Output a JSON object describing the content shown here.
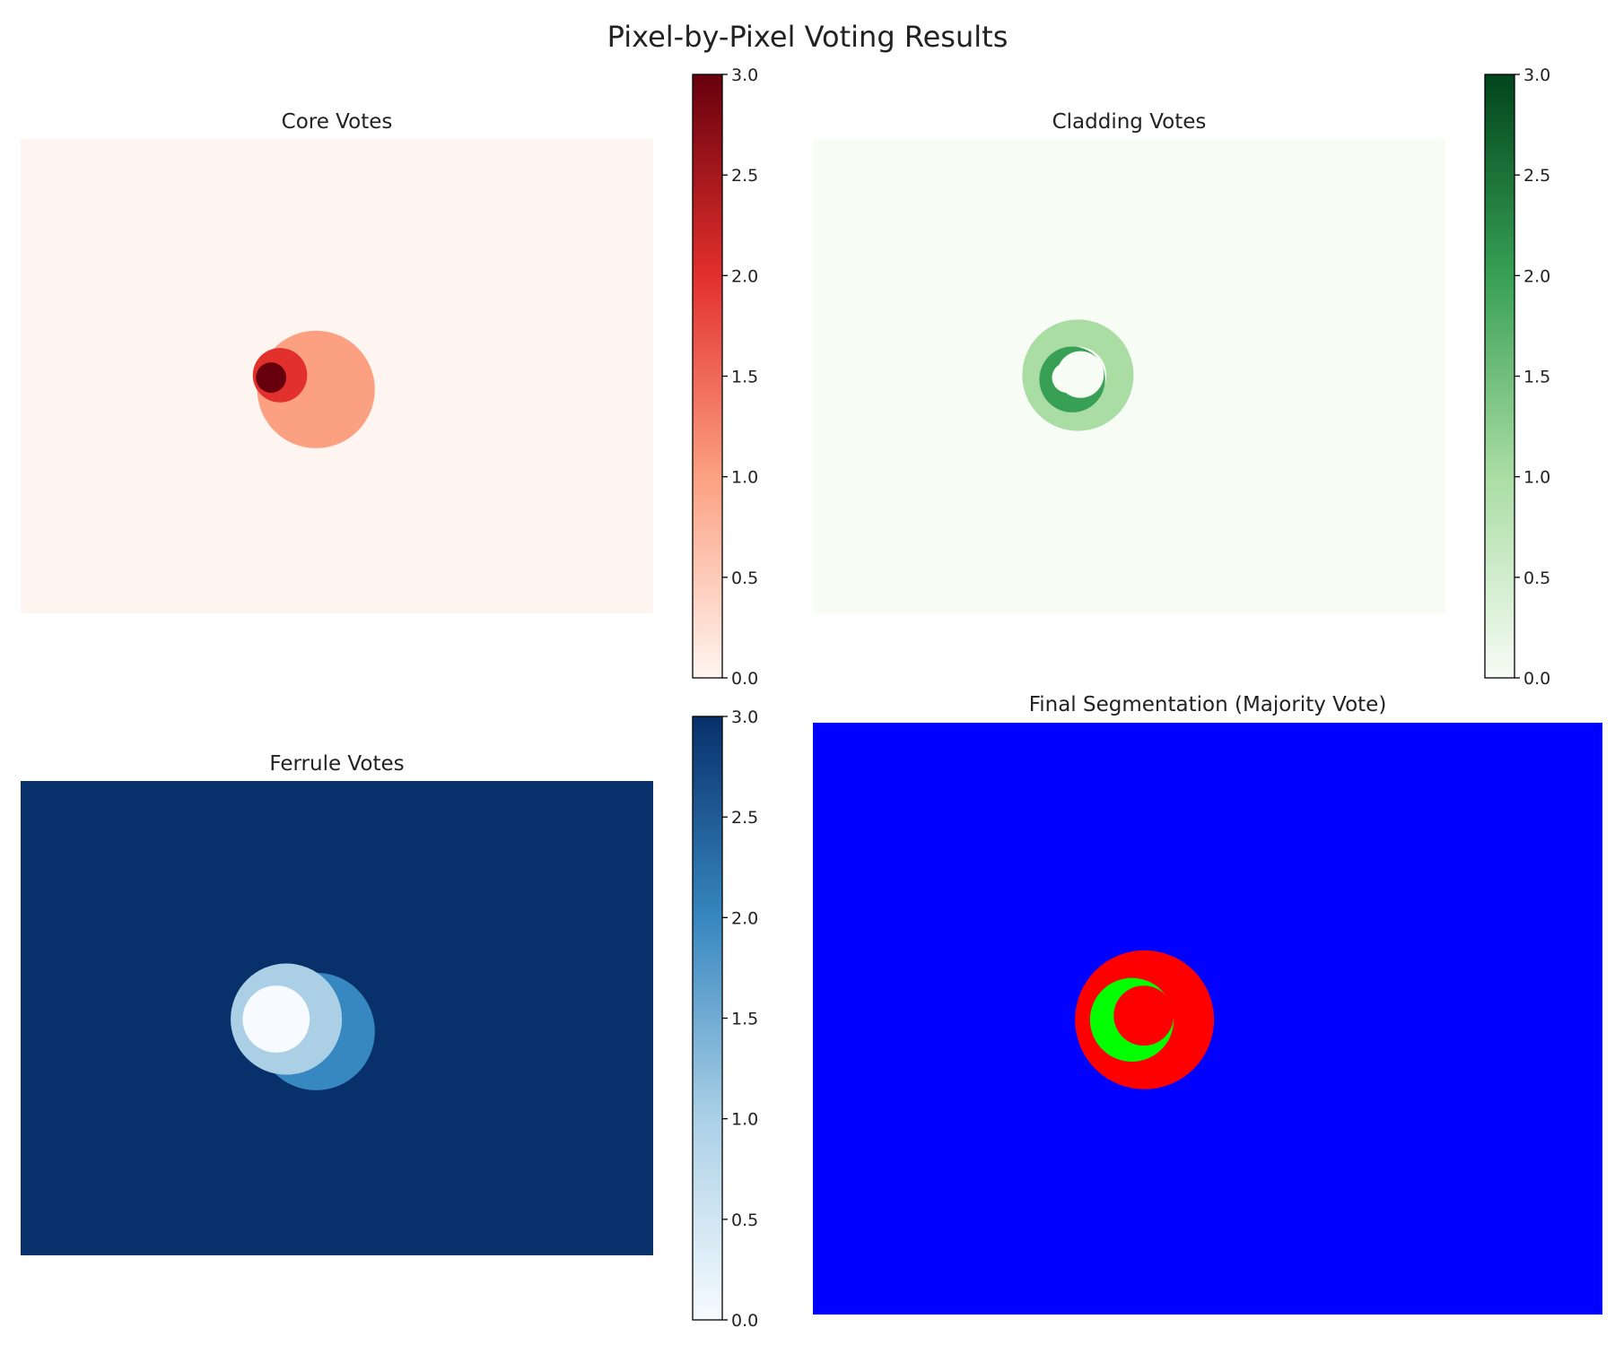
{
  "figure": {
    "title": "Pixel-by-Pixel Voting Results"
  },
  "chart_data": [
    {
      "type": "heatmap",
      "title": "Core Votes",
      "colormap": "Reds",
      "colors": [
        "#fff5f0",
        "#fca082",
        "#e2302d",
        "#67000d"
      ],
      "value_range": [
        0,
        3
      ],
      "colorbar": {
        "ticks": [
          "0.0",
          "0.5",
          "1.0",
          "1.5",
          "2.0",
          "2.5",
          "3.0"
        ]
      },
      "regions": [
        {
          "value": 0,
          "shape": "background"
        },
        {
          "value": 1,
          "shape": "circle",
          "cx": 0.467,
          "cy": 0.528,
          "r": 0.093
        },
        {
          "value": 2,
          "shape": "circle",
          "cx": 0.41,
          "cy": 0.498,
          "r": 0.043
        },
        {
          "value": 3,
          "shape": "circle",
          "cx": 0.396,
          "cy": 0.503,
          "r": 0.024
        }
      ]
    },
    {
      "type": "heatmap",
      "title": "Cladding Votes",
      "colormap": "Greens",
      "colors": [
        "#f7fcf5",
        "#aadda4",
        "#38a055",
        "#00441b"
      ],
      "value_range": [
        0,
        3
      ],
      "colorbar": {
        "ticks": [
          "0.0",
          "0.5",
          "1.0",
          "1.5",
          "2.0",
          "2.5",
          "3.0"
        ]
      },
      "regions": [
        {
          "value": 0,
          "shape": "background"
        },
        {
          "value": 1,
          "shape": "ring",
          "cx": 0.419,
          "cy": 0.498,
          "r_outer": 0.088,
          "r_inner": 0.045
        },
        {
          "value": 2,
          "shape": "crescent",
          "cx": 0.41,
          "cy": 0.507,
          "r_outer": 0.052,
          "r_inner": 0.037
        },
        {
          "value": 0,
          "shape": "circle",
          "cx": 0.402,
          "cy": 0.503,
          "r": 0.024
        }
      ]
    },
    {
      "type": "heatmap",
      "title": "Ferrule Votes",
      "colormap": "Blues",
      "colors": [
        "#f7fbff",
        "#abd0e6",
        "#3787c0",
        "#08306b"
      ],
      "value_range": [
        0,
        3
      ],
      "colorbar": {
        "ticks": [
          "0.0",
          "0.5",
          "1.0",
          "1.5",
          "2.0",
          "2.5",
          "3.0"
        ]
      },
      "regions": [
        {
          "value": 3,
          "shape": "background"
        },
        {
          "value": 2,
          "shape": "circle",
          "cx": 0.467,
          "cy": 0.528,
          "r": 0.093
        },
        {
          "value": 1,
          "shape": "circle",
          "cx": 0.42,
          "cy": 0.502,
          "r": 0.088
        },
        {
          "value": 0,
          "shape": "circle",
          "cx": 0.404,
          "cy": 0.502,
          "r": 0.053
        }
      ]
    },
    {
      "type": "heatmap",
      "title": "Final Segmentation (Majority Vote)",
      "colormap": "categorical",
      "classes": [
        {
          "label": "ferrule",
          "color": "#0000ff"
        },
        {
          "label": "cladding",
          "color": "#00ff00"
        },
        {
          "label": "core",
          "color": "#ff0000"
        }
      ],
      "regions": [
        {
          "class": "ferrule",
          "shape": "background"
        },
        {
          "class": "core",
          "shape": "circle",
          "cx": 0.42,
          "cy": 0.502,
          "r": 0.088
        },
        {
          "class": "cladding",
          "shape": "circle",
          "cx": 0.404,
          "cy": 0.502,
          "r": 0.053
        },
        {
          "class": "core",
          "shape": "circle",
          "cx": 0.419,
          "cy": 0.495,
          "r": 0.038
        }
      ]
    }
  ]
}
